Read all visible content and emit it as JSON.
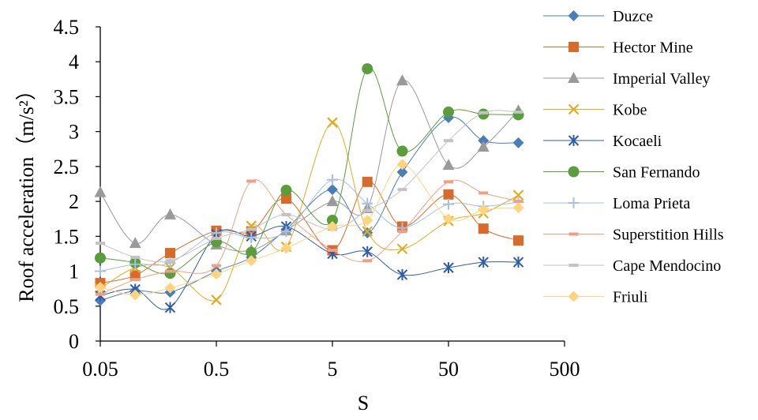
{
  "chart_data": {
    "type": "line",
    "xlabel": "S",
    "ylabel": "Roof acceleration（m/s²）",
    "x_scale": "log",
    "xlim": [
      0.05,
      500
    ],
    "ylim": [
      0,
      4.5
    ],
    "x_ticks": [
      "0.05",
      "0.5",
      "5",
      "50",
      "500"
    ],
    "y_ticks": [
      "0",
      "0.5",
      "1",
      "1.5",
      "2",
      "2.5",
      "3",
      "3.5",
      "4",
      "4.5"
    ],
    "grid": false,
    "legend_position": "right",
    "x": [
      0.05,
      0.1,
      0.2,
      0.5,
      1,
      2,
      5,
      10,
      20,
      50,
      100,
      200
    ],
    "series": [
      {
        "name": "Duzce",
        "color": "#4a7ebb",
        "marker": "diamond",
        "values": [
          0.58,
          0.72,
          0.7,
          1.0,
          1.2,
          1.6,
          2.17,
          1.55,
          2.42,
          3.2,
          2.87,
          2.84
        ]
      },
      {
        "name": "Hector Mine",
        "color": "#d86b2a",
        "marker": "square",
        "values": [
          0.83,
          0.94,
          1.26,
          1.58,
          1.57,
          2.04,
          1.3,
          2.28,
          1.64,
          2.1,
          1.61,
          1.44
        ]
      },
      {
        "name": "Imperial Valley",
        "color": "#9a9a9a",
        "marker": "triangle",
        "values": [
          2.13,
          1.4,
          1.81,
          1.38,
          1.3,
          1.58,
          2.0,
          1.9,
          3.73,
          2.52,
          2.78,
          3.3
        ]
      },
      {
        "name": "Kobe",
        "color": "#e0ac20",
        "marker": "x",
        "values": [
          0.75,
          1.05,
          1.05,
          0.59,
          1.65,
          1.35,
          3.13,
          1.57,
          1.32,
          1.72,
          1.83,
          2.09
        ]
      },
      {
        "name": "Kocaeli",
        "color": "#2e5ca8",
        "marker": "asterisk",
        "values": [
          0.65,
          0.74,
          0.48,
          1.53,
          1.5,
          1.64,
          1.25,
          1.28,
          0.95,
          1.05,
          1.13,
          1.13
        ]
      },
      {
        "name": "San Fernando",
        "color": "#5a9e3c",
        "marker": "circle",
        "values": [
          1.19,
          1.12,
          0.97,
          1.42,
          1.27,
          2.16,
          1.73,
          3.9,
          2.72,
          3.28,
          3.25,
          3.24
        ]
      },
      {
        "name": "Loma Prieta",
        "color": "#a8c0e0",
        "marker": "plus",
        "values": [
          1.0,
          1.1,
          1.12,
          1.55,
          1.48,
          1.57,
          2.31,
          1.97,
          1.62,
          1.96,
          1.93,
          1.99
        ]
      },
      {
        "name": "Superstition Hills",
        "color": "#ef9f86",
        "marker": "dash",
        "values": [
          0.67,
          0.88,
          1.0,
          1.08,
          2.29,
          1.81,
          1.3,
          1.15,
          1.57,
          2.28,
          2.12,
          2.0
        ]
      },
      {
        "name": "Cape Mendocino",
        "color": "#c3c3c3",
        "marker": "dash",
        "values": [
          1.4,
          1.2,
          1.15,
          1.47,
          1.6,
          1.81,
          1.6,
          1.87,
          2.17,
          2.87,
          3.27,
          3.28
        ]
      },
      {
        "name": "Friuli",
        "color": "#ffd47f",
        "marker": "diamond",
        "values": [
          0.77,
          0.66,
          0.76,
          0.96,
          1.15,
          1.33,
          1.64,
          1.73,
          2.53,
          1.75,
          1.88,
          1.91
        ]
      }
    ]
  }
}
